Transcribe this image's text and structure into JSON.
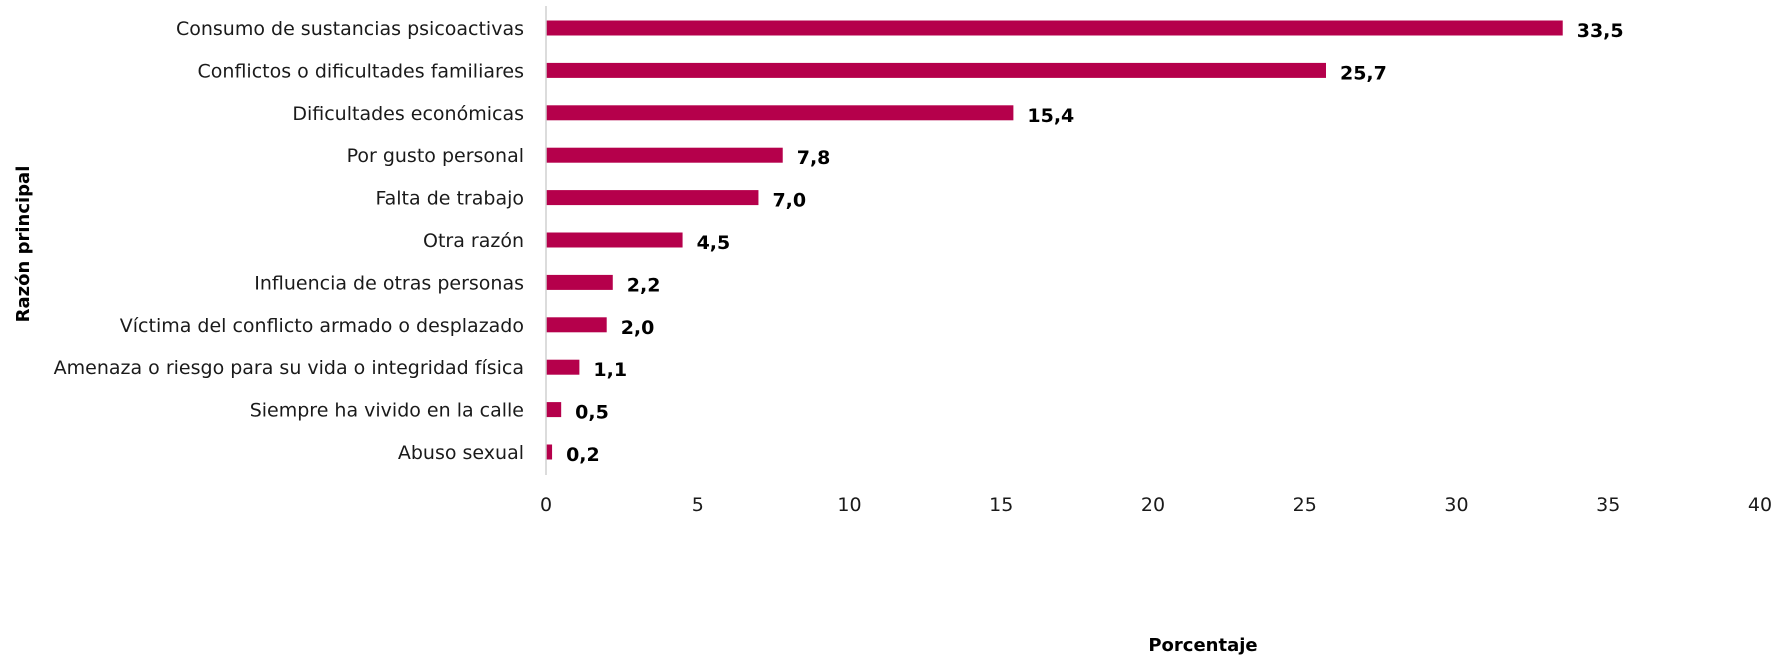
{
  "chart_data": {
    "type": "bar",
    "orientation": "horizontal",
    "categories": [
      "Consumo de sustancias psicoactivas",
      "Conflictos o dificultades familiares",
      "Dificultades económicas",
      "Por gusto personal",
      "Falta de trabajo",
      "Otra razón",
      "Influencia de otras personas",
      "Víctima del conflicto armado o desplazado",
      "Amenaza o riesgo para su vida o integridad física",
      "Siempre ha vivido en la calle",
      "Abuso sexual"
    ],
    "values": [
      33.5,
      25.7,
      15.4,
      7.8,
      7.0,
      4.5,
      2.2,
      2.0,
      1.1,
      0.5,
      0.2
    ],
    "data_labels": [
      "33,5",
      "25,7",
      "15,4",
      "7,8",
      "7,0",
      "4,5",
      "2,2",
      "2,0",
      "1,1",
      "0,5",
      "0,2"
    ],
    "title": "",
    "xlabel": "Porcentaje",
    "ylabel": "Razón principal",
    "xlim": [
      0,
      40
    ],
    "xticks": [
      0,
      5,
      10,
      15,
      20,
      25,
      30,
      35,
      40
    ],
    "grid": false,
    "legend": "none",
    "bar_color": "#b5004b"
  }
}
